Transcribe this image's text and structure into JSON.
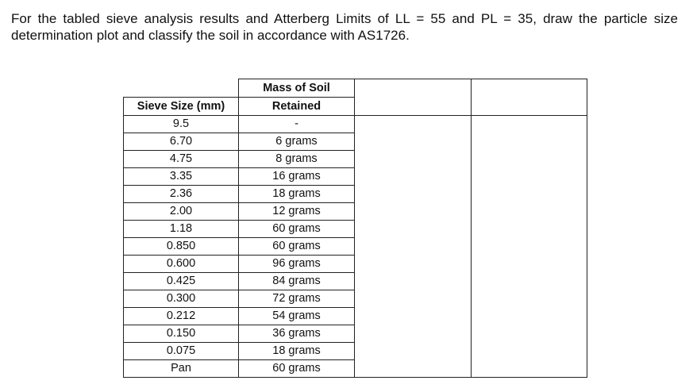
{
  "question": {
    "line1": "For the tabled sieve analysis results and Atterberg Limits of LL = 55 and PL = 35, draw the particle size",
    "line2": "determination plot and classify the soil in accordance with AS1726."
  },
  "table": {
    "col1_header": "Sieve Size (mm)",
    "col2_header_line1": "Mass of Soil",
    "col2_header_line2": "Retained",
    "rows": [
      {
        "sieve": "9.5",
        "mass": "-"
      },
      {
        "sieve": "6.70",
        "mass": "6 grams"
      },
      {
        "sieve": "4.75",
        "mass": "8 grams"
      },
      {
        "sieve": "3.35",
        "mass": "16 grams"
      },
      {
        "sieve": "2.36",
        "mass": "18 grams"
      },
      {
        "sieve": "2.00",
        "mass": "12 grams"
      },
      {
        "sieve": "1.18",
        "mass": "60 grams"
      },
      {
        "sieve": "0.850",
        "mass": "60 grams"
      },
      {
        "sieve": "0.600",
        "mass": "96 grams"
      },
      {
        "sieve": "0.425",
        "mass": "84 grams"
      },
      {
        "sieve": "0.300",
        "mass": "72 grams"
      },
      {
        "sieve": "0.212",
        "mass": "54 grams"
      },
      {
        "sieve": "0.150",
        "mass": "36 grams"
      },
      {
        "sieve": "0.075",
        "mass": "18 grams"
      },
      {
        "sieve": "Pan",
        "mass": "60 grams"
      }
    ]
  }
}
